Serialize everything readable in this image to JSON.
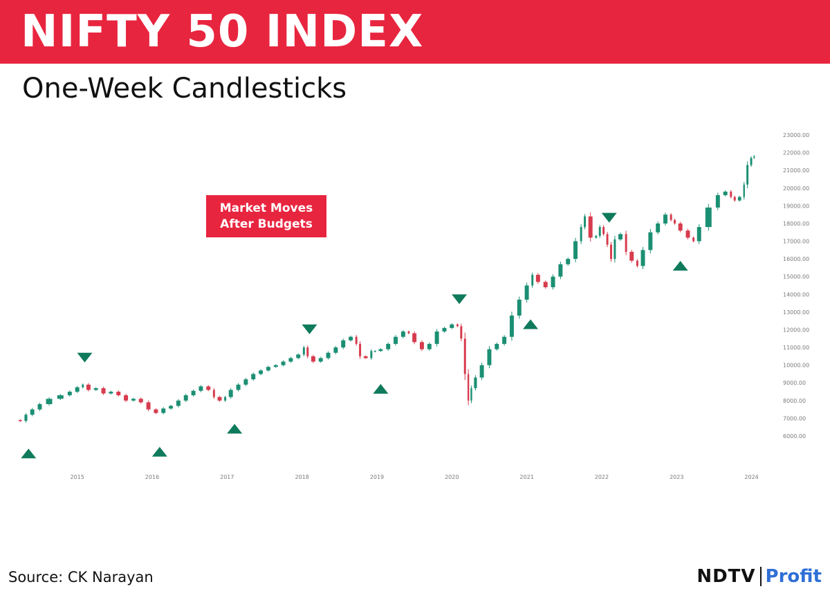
{
  "header": {
    "title": "NIFTY 50 INDEX",
    "subtitle": "One-Week Candlesticks"
  },
  "annotation": {
    "line1": "Market Moves",
    "line2": "After Budgets"
  },
  "footer": {
    "source": "Source: CK Narayan",
    "logo_main": "NDTV",
    "logo_sub": "Profit"
  },
  "colors": {
    "brand_red": "#e8253f",
    "up_candle": "#1b8f73",
    "down_candle": "#d73b4d",
    "marker": "#0f7a5c",
    "logo_blue": "#2f6fd6"
  },
  "chart_data": {
    "type": "line",
    "title": "NIFTY 50 INDEX",
    "subtitle": "One-Week Candlesticks",
    "x_unit": "year",
    "y_ticks": [
      "6000.00",
      "7000.00",
      "8000.00",
      "9000.00",
      "10000.00",
      "11000.00",
      "12000.00",
      "13000.00",
      "14000.00",
      "15000.00",
      "16000.00",
      "17000.00",
      "18000.00",
      "19000.00",
      "20000.00",
      "21000.00",
      "22000.00",
      "23000.00"
    ],
    "ylim": [
      6000,
      23000
    ],
    "x_ticks": [
      "2015",
      "2016",
      "2017",
      "2018",
      "2019",
      "2020",
      "2021",
      "2022",
      "2023",
      "2024"
    ],
    "xlim": [
      2014.2,
      2024.05
    ],
    "grid": false,
    "series": [
      {
        "values": [
          [
            2014.2,
            6900
          ],
          [
            2014.28,
            6850
          ],
          [
            2014.35,
            7200
          ],
          [
            2014.45,
            7500
          ],
          [
            2014.55,
            7800
          ],
          [
            2014.7,
            8100
          ],
          [
            2014.85,
            8300
          ],
          [
            2014.95,
            8500
          ],
          [
            2015.05,
            8750
          ],
          [
            2015.1,
            8900
          ],
          [
            2015.2,
            8600
          ],
          [
            2015.3,
            8700
          ],
          [
            2015.4,
            8400
          ],
          [
            2015.5,
            8500
          ],
          [
            2015.6,
            8300
          ],
          [
            2015.7,
            8000
          ],
          [
            2015.8,
            8100
          ],
          [
            2015.9,
            7900
          ],
          [
            2016.0,
            7500
          ],
          [
            2016.1,
            7300
          ],
          [
            2016.2,
            7550
          ],
          [
            2016.3,
            7700
          ],
          [
            2016.4,
            8000
          ],
          [
            2016.5,
            8300
          ],
          [
            2016.6,
            8550
          ],
          [
            2016.7,
            8800
          ],
          [
            2016.8,
            8600
          ],
          [
            2016.85,
            8200
          ],
          [
            2016.95,
            8000
          ],
          [
            2017.0,
            8200
          ],
          [
            2017.1,
            8600
          ],
          [
            2017.2,
            8900
          ],
          [
            2017.3,
            9200
          ],
          [
            2017.4,
            9500
          ],
          [
            2017.5,
            9700
          ],
          [
            2017.6,
            9900
          ],
          [
            2017.7,
            10000
          ],
          [
            2017.8,
            10200
          ],
          [
            2017.9,
            10400
          ],
          [
            2018.0,
            10600
          ],
          [
            2018.05,
            11000
          ],
          [
            2018.1,
            10500
          ],
          [
            2018.2,
            10200
          ],
          [
            2018.3,
            10400
          ],
          [
            2018.4,
            10700
          ],
          [
            2018.5,
            11000
          ],
          [
            2018.6,
            11400
          ],
          [
            2018.7,
            11600
          ],
          [
            2018.75,
            11200
          ],
          [
            2018.8,
            10500
          ],
          [
            2018.9,
            10400
          ],
          [
            2018.95,
            10800
          ],
          [
            2019.0,
            10800
          ],
          [
            2019.1,
            10900
          ],
          [
            2019.2,
            11200
          ],
          [
            2019.3,
            11600
          ],
          [
            2019.4,
            11900
          ],
          [
            2019.45,
            11800
          ],
          [
            2019.55,
            11300
          ],
          [
            2019.65,
            10900
          ],
          [
            2019.75,
            11200
          ],
          [
            2019.85,
            11900
          ],
          [
            2019.95,
            12100
          ],
          [
            2020.05,
            12300
          ],
          [
            2020.1,
            12200
          ],
          [
            2020.15,
            11500
          ],
          [
            2020.2,
            9500
          ],
          [
            2020.24,
            8000
          ],
          [
            2020.28,
            8700
          ],
          [
            2020.35,
            9300
          ],
          [
            2020.45,
            10000
          ],
          [
            2020.55,
            10900
          ],
          [
            2020.65,
            11200
          ],
          [
            2020.75,
            11600
          ],
          [
            2020.85,
            12800
          ],
          [
            2020.95,
            13700
          ],
          [
            2021.05,
            14500
          ],
          [
            2021.1,
            15100
          ],
          [
            2021.2,
            14700
          ],
          [
            2021.3,
            14400
          ],
          [
            2021.4,
            15000
          ],
          [
            2021.5,
            15700
          ],
          [
            2021.6,
            16000
          ],
          [
            2021.7,
            17000
          ],
          [
            2021.75,
            17800
          ],
          [
            2021.8,
            18400
          ],
          [
            2021.9,
            17200
          ],
          [
            2021.95,
            17300
          ],
          [
            2022.0,
            17800
          ],
          [
            2022.05,
            17400
          ],
          [
            2022.1,
            16800
          ],
          [
            2022.15,
            16000
          ],
          [
            2022.2,
            17100
          ],
          [
            2022.3,
            17400
          ],
          [
            2022.35,
            16400
          ],
          [
            2022.45,
            15900
          ],
          [
            2022.5,
            15600
          ],
          [
            2022.6,
            16500
          ],
          [
            2022.7,
            17500
          ],
          [
            2022.8,
            18000
          ],
          [
            2022.9,
            18500
          ],
          [
            2022.95,
            18200
          ],
          [
            2023.0,
            18000
          ],
          [
            2023.1,
            17600
          ],
          [
            2023.2,
            17200
          ],
          [
            2023.25,
            17000
          ],
          [
            2023.35,
            17800
          ],
          [
            2023.5,
            18900
          ],
          [
            2023.6,
            19600
          ],
          [
            2023.7,
            19800
          ],
          [
            2023.75,
            19500
          ],
          [
            2023.8,
            19300
          ],
          [
            2023.88,
            19500
          ],
          [
            2023.92,
            20200
          ],
          [
            2023.97,
            21300
          ],
          [
            2024.02,
            21700
          ],
          [
            2024.05,
            21800
          ]
        ]
      }
    ],
    "markers_up": [
      2014.35,
      2016.1,
      2017.1,
      2019.05,
      2021.05,
      2023.05
    ],
    "markers_down": [
      2015.1,
      2018.1,
      2020.1,
      2022.1
    ]
  }
}
